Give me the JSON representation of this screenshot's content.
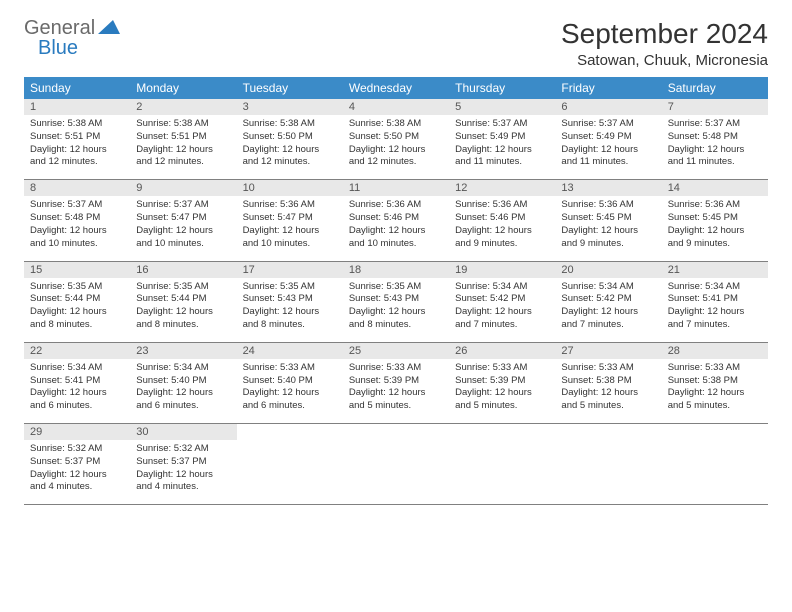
{
  "logo": {
    "word1": "General",
    "word2": "Blue"
  },
  "title": "September 2024",
  "location": "Satowan, Chuuk, Micronesia",
  "headers": [
    "Sunday",
    "Monday",
    "Tuesday",
    "Wednesday",
    "Thursday",
    "Friday",
    "Saturday"
  ],
  "colors": {
    "header_bg": "#3b8bc8",
    "header_fg": "#ffffff",
    "daynum_bg": "#e8e8e8",
    "border": "#808080",
    "logo_gray": "#6a6a6a",
    "logo_blue": "#2a7bbf"
  },
  "weeks": [
    [
      {
        "n": "1",
        "sr": "5:38 AM",
        "ss": "5:51 PM",
        "dl": "12 hours and 12 minutes."
      },
      {
        "n": "2",
        "sr": "5:38 AM",
        "ss": "5:51 PM",
        "dl": "12 hours and 12 minutes."
      },
      {
        "n": "3",
        "sr": "5:38 AM",
        "ss": "5:50 PM",
        "dl": "12 hours and 12 minutes."
      },
      {
        "n": "4",
        "sr": "5:38 AM",
        "ss": "5:50 PM",
        "dl": "12 hours and 12 minutes."
      },
      {
        "n": "5",
        "sr": "5:37 AM",
        "ss": "5:49 PM",
        "dl": "12 hours and 11 minutes."
      },
      {
        "n": "6",
        "sr": "5:37 AM",
        "ss": "5:49 PM",
        "dl": "12 hours and 11 minutes."
      },
      {
        "n": "7",
        "sr": "5:37 AM",
        "ss": "5:48 PM",
        "dl": "12 hours and 11 minutes."
      }
    ],
    [
      {
        "n": "8",
        "sr": "5:37 AM",
        "ss": "5:48 PM",
        "dl": "12 hours and 10 minutes."
      },
      {
        "n": "9",
        "sr": "5:37 AM",
        "ss": "5:47 PM",
        "dl": "12 hours and 10 minutes."
      },
      {
        "n": "10",
        "sr": "5:36 AM",
        "ss": "5:47 PM",
        "dl": "12 hours and 10 minutes."
      },
      {
        "n": "11",
        "sr": "5:36 AM",
        "ss": "5:46 PM",
        "dl": "12 hours and 10 minutes."
      },
      {
        "n": "12",
        "sr": "5:36 AM",
        "ss": "5:46 PM",
        "dl": "12 hours and 9 minutes."
      },
      {
        "n": "13",
        "sr": "5:36 AM",
        "ss": "5:45 PM",
        "dl": "12 hours and 9 minutes."
      },
      {
        "n": "14",
        "sr": "5:36 AM",
        "ss": "5:45 PM",
        "dl": "12 hours and 9 minutes."
      }
    ],
    [
      {
        "n": "15",
        "sr": "5:35 AM",
        "ss": "5:44 PM",
        "dl": "12 hours and 8 minutes."
      },
      {
        "n": "16",
        "sr": "5:35 AM",
        "ss": "5:44 PM",
        "dl": "12 hours and 8 minutes."
      },
      {
        "n": "17",
        "sr": "5:35 AM",
        "ss": "5:43 PM",
        "dl": "12 hours and 8 minutes."
      },
      {
        "n": "18",
        "sr": "5:35 AM",
        "ss": "5:43 PM",
        "dl": "12 hours and 8 minutes."
      },
      {
        "n": "19",
        "sr": "5:34 AM",
        "ss": "5:42 PM",
        "dl": "12 hours and 7 minutes."
      },
      {
        "n": "20",
        "sr": "5:34 AM",
        "ss": "5:42 PM",
        "dl": "12 hours and 7 minutes."
      },
      {
        "n": "21",
        "sr": "5:34 AM",
        "ss": "5:41 PM",
        "dl": "12 hours and 7 minutes."
      }
    ],
    [
      {
        "n": "22",
        "sr": "5:34 AM",
        "ss": "5:41 PM",
        "dl": "12 hours and 6 minutes."
      },
      {
        "n": "23",
        "sr": "5:34 AM",
        "ss": "5:40 PM",
        "dl": "12 hours and 6 minutes."
      },
      {
        "n": "24",
        "sr": "5:33 AM",
        "ss": "5:40 PM",
        "dl": "12 hours and 6 minutes."
      },
      {
        "n": "25",
        "sr": "5:33 AM",
        "ss": "5:39 PM",
        "dl": "12 hours and 5 minutes."
      },
      {
        "n": "26",
        "sr": "5:33 AM",
        "ss": "5:39 PM",
        "dl": "12 hours and 5 minutes."
      },
      {
        "n": "27",
        "sr": "5:33 AM",
        "ss": "5:38 PM",
        "dl": "12 hours and 5 minutes."
      },
      {
        "n": "28",
        "sr": "5:33 AM",
        "ss": "5:38 PM",
        "dl": "12 hours and 5 minutes."
      }
    ],
    [
      {
        "n": "29",
        "sr": "5:32 AM",
        "ss": "5:37 PM",
        "dl": "12 hours and 4 minutes."
      },
      {
        "n": "30",
        "sr": "5:32 AM",
        "ss": "5:37 PM",
        "dl": "12 hours and 4 minutes."
      },
      null,
      null,
      null,
      null,
      null
    ]
  ],
  "labels": {
    "sunrise": "Sunrise:",
    "sunset": "Sunset:",
    "daylight": "Daylight:"
  }
}
